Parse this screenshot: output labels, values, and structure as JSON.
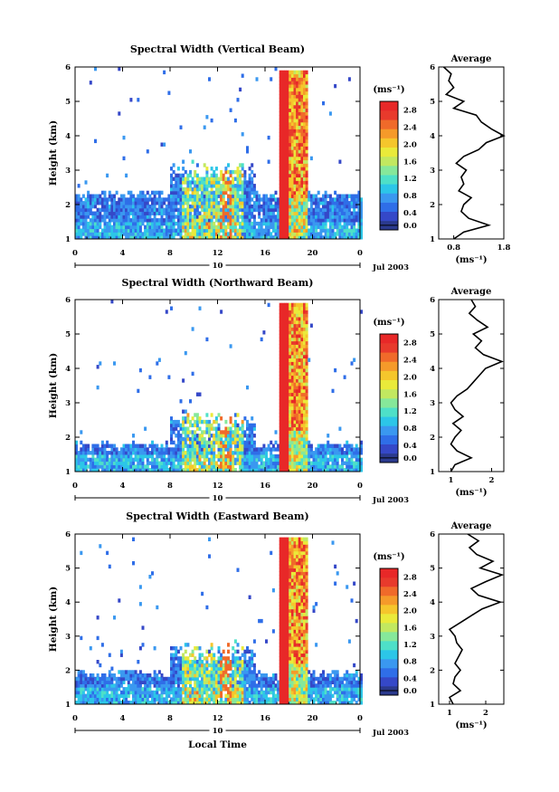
{
  "colorbar_colors": [
    "#2b3a8e",
    "#3548c8",
    "#2f6ee8",
    "#3a98f0",
    "#2cc6e8",
    "#4ee0c8",
    "#86e89a",
    "#c2e860",
    "#eaea3a",
    "#f5c62c",
    "#f59a2a",
    "#f06a2a",
    "#e83a2c",
    "#e82828"
  ],
  "panel_labels": {
    "xlabel": "Local Time",
    "date_label": "Jul 2003",
    "day_label": "10",
    "avg_title": "Average",
    "cbar_unit": "(ms⁻¹)",
    "avg_unit": "(ms⁻¹)"
  },
  "chart_data": [
    {
      "type": "heatmap",
      "title": "Spectral Width (Vertical Beam)",
      "ylabel": "Height (km)",
      "xlabel": "",
      "x_ticks": [
        "0",
        "4",
        "8",
        "12",
        "16",
        "20",
        "0"
      ],
      "xlim": [
        0,
        24
      ],
      "ylim": [
        1,
        6
      ],
      "y_ticks": [
        "1",
        "2",
        "3",
        "4",
        "5",
        "6"
      ],
      "colorbar_ticks": [
        "0.0",
        "0.4",
        "0.8",
        "1.2",
        "1.6",
        "2.0",
        "2.4",
        "2.8"
      ],
      "colorbar_range": [
        0,
        3.0
      ],
      "base_layer_top_km": 2.3,
      "storm_interval_h": [
        17.0,
        19.5
      ],
      "profile": {
        "title": "Average",
        "x_ticks": [
          "0.8",
          "1.8"
        ],
        "xlim": [
          0.5,
          1.8
        ],
        "height_km": [
          1.0,
          1.2,
          1.4,
          1.6,
          1.8,
          2.0,
          2.2,
          2.4,
          2.6,
          2.8,
          3.0,
          3.2,
          3.4,
          3.6,
          3.8,
          4.0,
          4.2,
          4.4,
          4.6,
          4.8,
          5.0,
          5.2,
          5.4,
          5.6,
          5.8,
          6.0
        ],
        "width": [
          0.8,
          1.0,
          1.5,
          1.1,
          0.95,
          1.0,
          1.15,
          0.9,
          1.0,
          0.95,
          1.05,
          0.85,
          1.0,
          1.3,
          1.45,
          1.8,
          1.55,
          1.35,
          1.25,
          0.8,
          1.0,
          0.65,
          0.8,
          0.7,
          0.75,
          0.6
        ]
      }
    },
    {
      "type": "heatmap",
      "title": "Spectral Width (Northward Beam)",
      "ylabel": "Height (km)",
      "xlabel": "",
      "x_ticks": [
        "0",
        "4",
        "8",
        "12",
        "16",
        "20",
        "0"
      ],
      "xlim": [
        0,
        24
      ],
      "ylim": [
        1,
        6
      ],
      "y_ticks": [
        "1",
        "2",
        "3",
        "4",
        "5",
        "6"
      ],
      "colorbar_ticks": [
        "0.0",
        "0.4",
        "0.8",
        "1.2",
        "1.6",
        "2.0",
        "2.4",
        "2.8"
      ],
      "colorbar_range": [
        0,
        3.0
      ],
      "base_layer_top_km": 1.8,
      "storm_interval_h": [
        17.0,
        19.5
      ],
      "profile": {
        "title": "Average",
        "x_ticks": [
          "1",
          "2"
        ],
        "xlim": [
          0.7,
          2.3
        ],
        "height_km": [
          1.0,
          1.2,
          1.4,
          1.6,
          1.8,
          2.0,
          2.2,
          2.4,
          2.6,
          2.8,
          3.0,
          3.2,
          3.4,
          3.6,
          3.8,
          4.0,
          4.2,
          4.4,
          4.6,
          4.8,
          5.0,
          5.2,
          5.4,
          5.6,
          5.8,
          6.0
        ],
        "width": [
          1.0,
          1.1,
          1.5,
          1.15,
          1.0,
          1.1,
          1.25,
          1.05,
          1.3,
          1.1,
          1.0,
          1.15,
          1.4,
          1.55,
          1.7,
          1.85,
          2.25,
          1.8,
          1.6,
          1.75,
          1.55,
          1.9,
          1.65,
          1.45,
          1.6,
          1.5
        ]
      }
    },
    {
      "type": "heatmap",
      "title": "Spectral Width (Eastward Beam)",
      "ylabel": "Height (km)",
      "xlabel": "Local Time",
      "x_ticks": [
        "0",
        "4",
        "8",
        "12",
        "16",
        "20",
        "0"
      ],
      "xlim": [
        0,
        24
      ],
      "ylim": [
        1,
        6
      ],
      "y_ticks": [
        "1",
        "2",
        "3",
        "4",
        "5",
        "6"
      ],
      "colorbar_ticks": [
        "0.0",
        "0.4",
        "0.8",
        "1.2",
        "1.6",
        "2.0",
        "2.4",
        "2.8"
      ],
      "colorbar_range": [
        0,
        3.0
      ],
      "base_layer_top_km": 1.9,
      "storm_interval_h": [
        17.0,
        19.5
      ],
      "profile": {
        "title": "Average",
        "x_ticks": [
          "1",
          "2"
        ],
        "xlim": [
          0.7,
          2.5
        ],
        "height_km": [
          1.0,
          1.2,
          1.4,
          1.6,
          1.8,
          2.0,
          2.2,
          2.4,
          2.6,
          2.8,
          3.0,
          3.2,
          3.4,
          3.6,
          3.8,
          4.0,
          4.2,
          4.4,
          4.6,
          4.8,
          5.0,
          5.2,
          5.4,
          5.6,
          5.8,
          6.0
        ],
        "width": [
          1.1,
          1.0,
          1.3,
          1.1,
          1.15,
          1.3,
          1.15,
          1.25,
          1.35,
          1.2,
          1.15,
          1.0,
          1.3,
          1.6,
          1.9,
          2.4,
          1.8,
          1.6,
          2.0,
          2.45,
          1.85,
          2.2,
          1.75,
          1.55,
          1.8,
          1.5
        ]
      }
    }
  ]
}
